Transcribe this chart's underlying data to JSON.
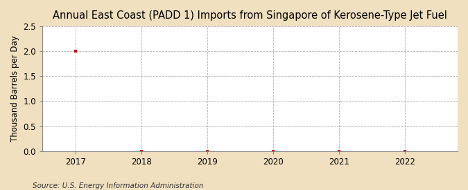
{
  "title": "Annual East Coast (PADD 1) Imports from Singapore of Kerosene-Type Jet Fuel",
  "ylabel": "Thousand Barrels per Day",
  "source": "Source: U.S. Energy Information Administration",
  "outer_background_color": "#f0e0c0",
  "plot_background_color": "#ffffff",
  "x_values": [
    2017,
    2018,
    2019,
    2020,
    2021,
    2022
  ],
  "y_values": [
    2.0,
    0.0,
    0.0,
    0.0,
    0.0,
    0.0
  ],
  "marker_color": "#cc0000",
  "ylim": [
    0.0,
    2.5
  ],
  "yticks": [
    0.0,
    0.5,
    1.0,
    1.5,
    2.0,
    2.5
  ],
  "xlim": [
    2016.5,
    2022.8
  ],
  "xticks": [
    2017,
    2018,
    2019,
    2020,
    2021,
    2022
  ],
  "title_fontsize": 10.5,
  "axis_fontsize": 8.5,
  "tick_fontsize": 8.5,
  "source_fontsize": 7.5
}
